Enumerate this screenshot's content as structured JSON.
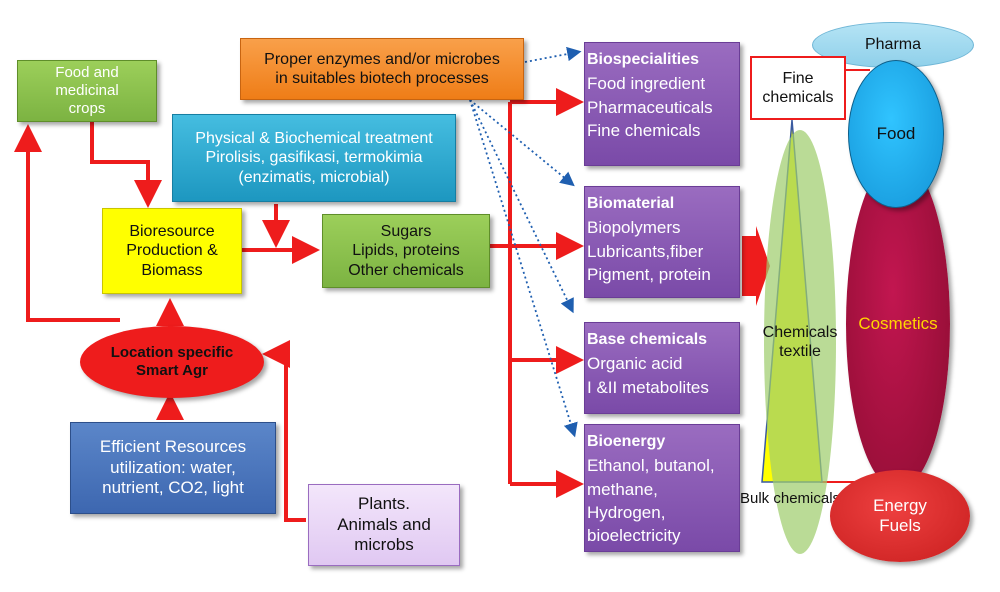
{
  "boxes": {
    "food_crops": [
      "Food and",
      "medicinal",
      "crops"
    ],
    "enzymes": [
      "Proper enzymes and/or microbes",
      "in suitables biotech processes"
    ],
    "treatment": [
      "Physical & Biochemical treatment",
      "Pirolisis, gasifikasi, termokimia",
      "(enzimatis, microbial)"
    ],
    "bioresource": [
      "Bioresource",
      "Production &",
      "Biomass"
    ],
    "sugars": [
      "Sugars",
      "Lipids, proteins",
      "Other chemicals"
    ],
    "smart_agr": [
      "Location specific",
      "Smart Agr"
    ],
    "efficient": [
      "Efficient Resources",
      "utilization: water,",
      "nutrient, CO2, light"
    ],
    "plants": [
      "Plants.",
      "Animals and",
      "microbs"
    ]
  },
  "products": [
    {
      "title": "Biospecialities",
      "items": [
        "Food ingredient",
        "Pharmaceuticals",
        "Fine chemicals"
      ]
    },
    {
      "title": "Biomaterial",
      "items": [
        "Biopolymers",
        "Lubricants,fiber",
        "Pigment, protein"
      ]
    },
    {
      "title": "Base chemicals",
      "items": [
        "Organic acid",
        "I &II metabolites"
      ]
    },
    {
      "title": "Bioenergy",
      "items": [
        "Ethanol, butanol,",
        "methane,",
        "Hydrogen,",
        "bioelectricity"
      ]
    }
  ],
  "pyramid": {
    "fine_chemicals": [
      "Fine",
      "chemicals"
    ],
    "chemicals_textile": [
      "Chemicals",
      "textile"
    ],
    "bulk_chemicals": "Bulk chemicals"
  },
  "markets": {
    "pharma": "Pharma",
    "food": "Food",
    "cosmetics": "Cosmetics",
    "energy": [
      "Energy",
      "Fuels"
    ]
  },
  "colors": {
    "arrow_red": "#ee1c1c",
    "dotted_blue": "#1f5fb0",
    "green_box": "#8bc34a",
    "orange_box": "#f58a2a",
    "teal_box": "#2aa7c9",
    "yellow_box": "#ffff00",
    "purple_box": "#8255b0",
    "blue_box": "#4472c4",
    "lavender_box": "#ead9f7",
    "cosmetics_ellipse": "#a0103a",
    "food_ellipse": "#1aa7e8"
  }
}
